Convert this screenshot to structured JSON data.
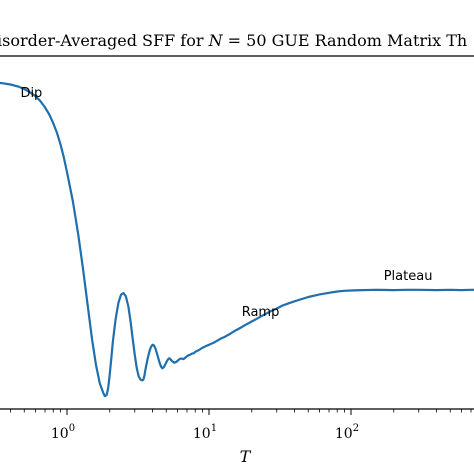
{
  "chart_data": {
    "type": "line",
    "title": {
      "lead": "isorder-Averaged SFF for ",
      "var": "N",
      "eq": " = 50 ",
      "tail": "GUE Random Matrix Th"
    },
    "xlabel": "T",
    "ylabel": "",
    "x_scale": "log",
    "xlim": [
      0.3,
      1200
    ],
    "ylim": [
      0,
      1
    ],
    "x_ticks": [
      {
        "value": 1,
        "base": "10",
        "exp": "0"
      },
      {
        "value": 10,
        "base": "10",
        "exp": "1"
      },
      {
        "value": 100,
        "base": "10",
        "exp": "2"
      }
    ],
    "grid": false,
    "series_color": "#1f6fae",
    "series": [
      {
        "x": [
          0.3,
          0.35,
          0.4,
          0.45,
          0.5,
          0.55,
          0.6,
          0.65,
          0.7,
          0.75,
          0.8,
          0.85,
          0.9,
          0.95,
          1.0,
          1.1,
          1.2,
          1.3,
          1.4,
          1.5,
          1.6,
          1.7,
          1.8,
          1.85,
          1.9,
          1.95,
          2.0,
          2.05,
          2.1,
          2.2,
          2.3,
          2.4,
          2.5,
          2.6,
          2.7,
          2.8,
          2.9,
          3.0,
          3.1,
          3.2,
          3.3,
          3.4,
          3.45,
          3.5,
          3.55,
          3.6,
          3.7,
          3.8,
          3.9,
          4.0,
          4.1,
          4.2,
          4.3,
          4.4,
          4.5,
          4.6,
          4.7,
          4.8,
          4.9,
          5.0,
          5.1,
          5.2,
          5.3,
          5.5,
          5.7,
          5.9,
          6.0,
          6.2,
          6.4,
          6.6,
          6.8,
          7.0,
          7.2,
          7.4,
          7.6,
          7.8,
          8.0,
          8.5,
          9.0,
          9.5,
          10,
          11,
          12,
          13,
          14,
          15,
          16,
          17,
          18,
          19,
          20,
          22,
          24,
          26,
          28,
          30,
          33,
          36,
          40,
          45,
          50,
          55,
          60,
          70,
          80,
          90,
          100,
          120,
          150,
          200,
          250,
          300,
          400,
          500,
          600,
          700,
          800,
          1000,
          1200
        ],
        "y": [
          0.975,
          0.972,
          0.968,
          0.962,
          0.954,
          0.944,
          0.932,
          0.917,
          0.898,
          0.876,
          0.85,
          0.82,
          0.785,
          0.745,
          0.7,
          0.61,
          0.51,
          0.4,
          0.29,
          0.19,
          0.11,
          0.055,
          0.025,
          0.015,
          0.018,
          0.04,
          0.08,
          0.13,
          0.18,
          0.25,
          0.3,
          0.325,
          0.33,
          0.32,
          0.29,
          0.245,
          0.19,
          0.14,
          0.1,
          0.075,
          0.065,
          0.063,
          0.066,
          0.075,
          0.09,
          0.105,
          0.13,
          0.15,
          0.165,
          0.172,
          0.17,
          0.16,
          0.145,
          0.13,
          0.115,
          0.105,
          0.1,
          0.103,
          0.11,
          0.118,
          0.125,
          0.13,
          0.13,
          0.122,
          0.117,
          0.12,
          0.123,
          0.128,
          0.13,
          0.128,
          0.132,
          0.137,
          0.14,
          0.142,
          0.145,
          0.146,
          0.15,
          0.156,
          0.163,
          0.168,
          0.172,
          0.18,
          0.19,
          0.197,
          0.205,
          0.213,
          0.22,
          0.226,
          0.232,
          0.238,
          0.243,
          0.253,
          0.262,
          0.27,
          0.277,
          0.283,
          0.292,
          0.298,
          0.305,
          0.312,
          0.318,
          0.322,
          0.326,
          0.331,
          0.335,
          0.337,
          0.338,
          0.339,
          0.34,
          0.339,
          0.34,
          0.34,
          0.339,
          0.34,
          0.339,
          0.34,
          0.34,
          0.339,
          0.34
        ]
      }
    ],
    "annotations": [
      {
        "text": "Dip",
        "x": 0.47,
        "y": 0.93
      },
      {
        "text": "Ramp",
        "x": 17,
        "y": 0.26
      },
      {
        "text": "Plateau",
        "x": 170,
        "y": 0.37
      }
    ]
  }
}
